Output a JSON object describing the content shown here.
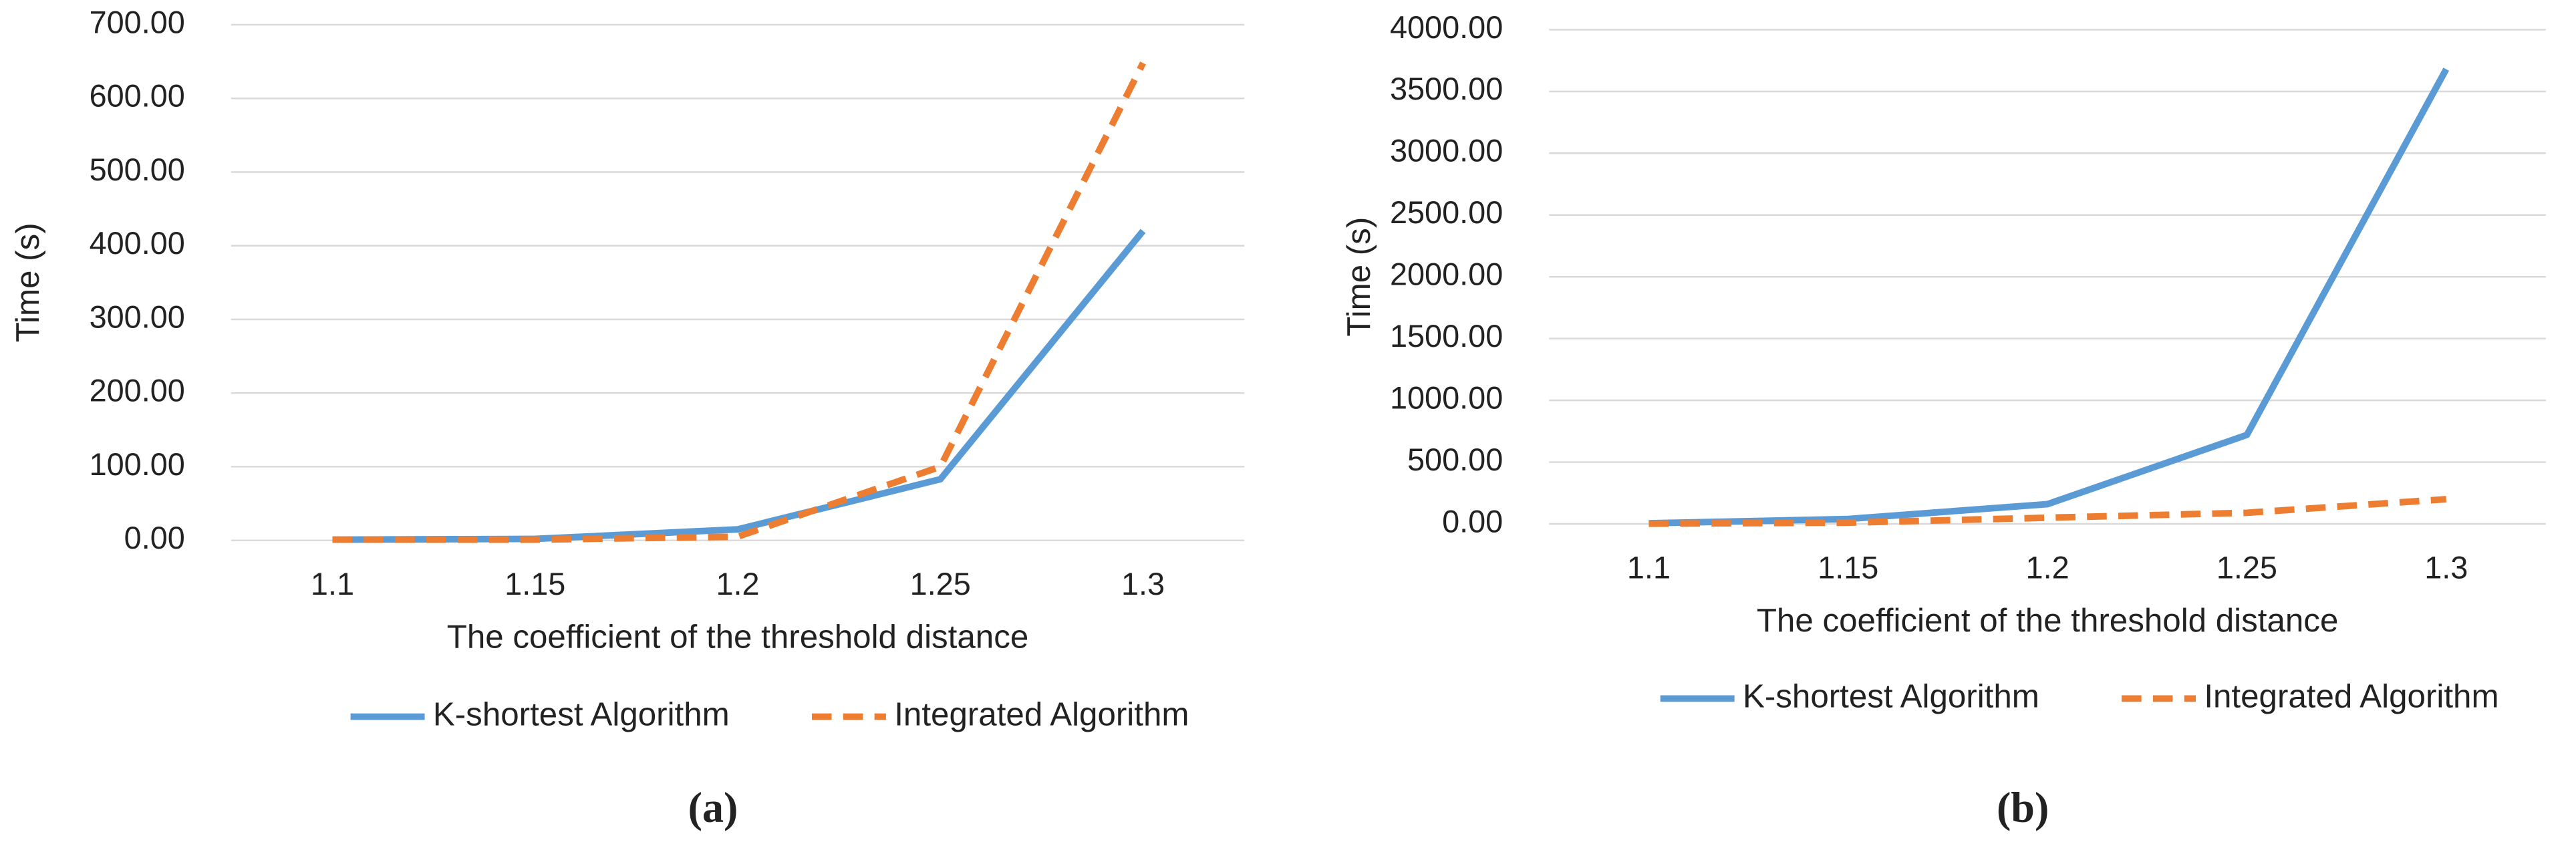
{
  "chart_data": [
    {
      "type": "line",
      "caption": "(a)",
      "x_label": "The coefficient of the threshold distance",
      "y_label": "Time (s)",
      "categories": [
        "1.1",
        "1.15",
        "1.2",
        "1.25",
        "1.3"
      ],
      "series": [
        {
          "name": "K-shortest Algorithm",
          "color": "#5b9bd5",
          "line_style": "solid",
          "values": [
            1,
            2,
            15,
            83,
            420
          ]
        },
        {
          "name": "Integrated Algorithm",
          "color": "#ed7d31",
          "line_style": "dashed",
          "values": [
            1,
            1,
            5,
            100,
            648
          ]
        }
      ],
      "ylim": [
        0,
        700
      ],
      "yticks": [
        {
          "value": 0,
          "label": "0.00"
        },
        {
          "value": 100,
          "label": "100.00"
        },
        {
          "value": 200,
          "label": "200.00"
        },
        {
          "value": 300,
          "label": "300.00"
        },
        {
          "value": 400,
          "label": "400.00"
        },
        {
          "value": 500,
          "label": "500.00"
        },
        {
          "value": 600,
          "label": "600.00"
        },
        {
          "value": 700,
          "label": "700.00"
        }
      ],
      "grid": true,
      "legend": "bottom"
    },
    {
      "type": "line",
      "caption": "(b)",
      "x_label": "The coefficient of the threshold distance",
      "y_label": "Time (s)",
      "categories": [
        "1.1",
        "1.15",
        "1.2",
        "1.25",
        "1.3"
      ],
      "series": [
        {
          "name": "K-shortest Algorithm",
          "color": "#5b9bd5",
          "line_style": "solid",
          "values": [
            5,
            40,
            160,
            720,
            3680
          ]
        },
        {
          "name": "Integrated Algorithm",
          "color": "#ed7d31",
          "line_style": "dashed",
          "values": [
            2,
            10,
            50,
            90,
            200
          ]
        }
      ],
      "ylim": [
        0,
        4000
      ],
      "yticks": [
        {
          "value": 0,
          "label": "0.00"
        },
        {
          "value": 500,
          "label": "500.00"
        },
        {
          "value": 1000,
          "label": "1000.00"
        },
        {
          "value": 1500,
          "label": "1500.00"
        },
        {
          "value": 2000,
          "label": "2000.00"
        },
        {
          "value": 2500,
          "label": "2500.00"
        },
        {
          "value": 3000,
          "label": "3000.00"
        },
        {
          "value": 3500,
          "label": "3500.00"
        },
        {
          "value": 4000,
          "label": "4000.00"
        }
      ],
      "grid": true,
      "legend": "bottom"
    }
  ]
}
